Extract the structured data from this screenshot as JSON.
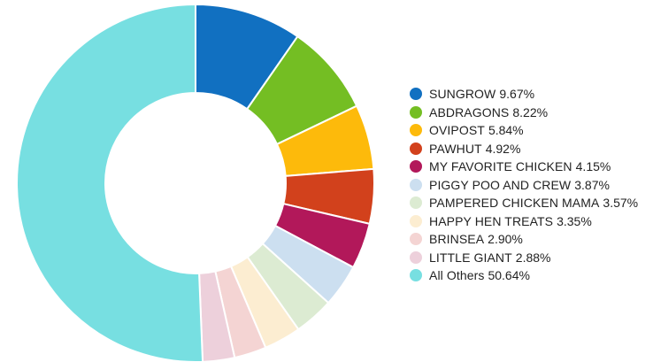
{
  "chart_data": {
    "type": "pie",
    "title": "",
    "legend_position": "right",
    "slices": [
      {
        "label": "SUNGROW",
        "value": 9.67,
        "display": "9.67%",
        "color": "#1170C1"
      },
      {
        "label": "ABDRAGONS",
        "value": 8.22,
        "display": "8.22%",
        "color": "#74BE23"
      },
      {
        "label": "OVIPOST",
        "value": 5.84,
        "display": "5.84%",
        "color": "#FDBA0B"
      },
      {
        "label": "PAWHUT",
        "value": 4.92,
        "display": "4.92%",
        "color": "#D2411C"
      },
      {
        "label": "MY FAVORITE CHICKEN",
        "value": 4.15,
        "display": "4.15%",
        "color": "#B2185A"
      },
      {
        "label": "PIGGY POO AND CREW",
        "value": 3.87,
        "display": "3.87%",
        "color": "#CCDFF0"
      },
      {
        "label": "PAMPERED CHICKEN MAMA",
        "value": 3.57,
        "display": "3.57%",
        "color": "#DCEBD2"
      },
      {
        "label": "HAPPY HEN TREATS",
        "value": 3.35,
        "display": "3.35%",
        "color": "#FCEDD1"
      },
      {
        "label": "BRINSEA",
        "value": 2.9,
        "display": "2.90%",
        "color": "#F4D4D3"
      },
      {
        "label": "LITTLE GIANT",
        "value": 2.88,
        "display": "2.88%",
        "color": "#EDD0DB"
      },
      {
        "label": "All Others",
        "value": 50.64,
        "display": "50.64%",
        "color": "#77DFE1"
      }
    ]
  }
}
